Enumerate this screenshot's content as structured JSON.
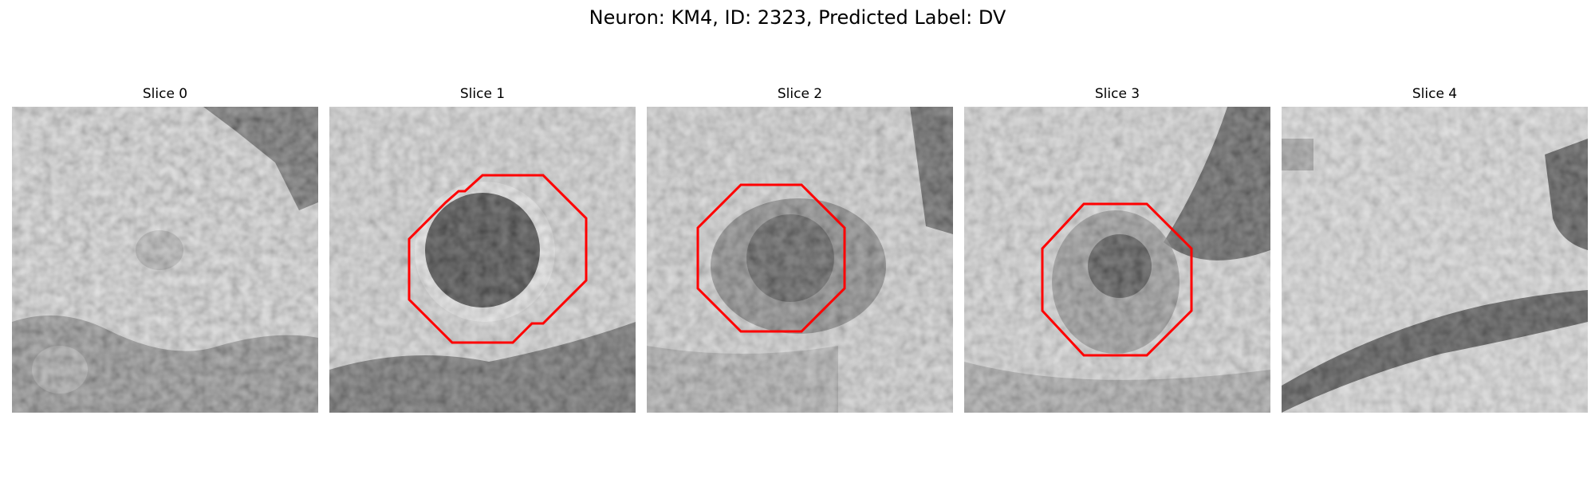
{
  "figure": {
    "title": "Neuron: KM4, ID: 2323, Predicted Label: DV"
  },
  "panels": [
    {
      "title": "Slice 0",
      "contour": false
    },
    {
      "title": "Slice 1",
      "contour": true
    },
    {
      "title": "Slice 2",
      "contour": true
    },
    {
      "title": "Slice 3",
      "contour": true
    },
    {
      "title": "Slice 4",
      "contour": false
    }
  ],
  "colors": {
    "contour": "#ff0000"
  }
}
